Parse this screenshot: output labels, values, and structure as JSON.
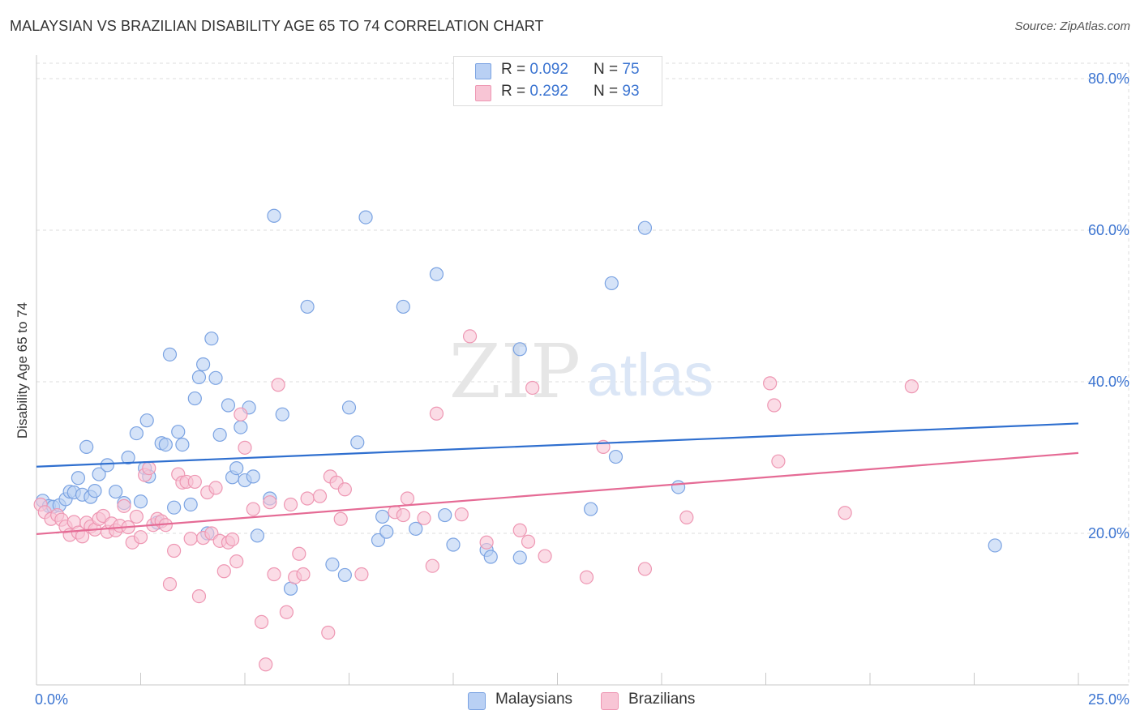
{
  "title": "MALAYSIAN VS BRAZILIAN DISABILITY AGE 65 TO 74 CORRELATION CHART",
  "source": "Source: ZipAtlas.com",
  "watermark": {
    "zip": "ZIP",
    "atlas": "atlas"
  },
  "colors": {
    "malaysians_fill": "#b9d0f4",
    "malaysians_stroke": "#7ba3e2",
    "malaysians_line": "#2f6fcf",
    "brazilians_fill": "#f8c5d5",
    "brazilians_stroke": "#ee97b3",
    "brazilians_line": "#e56b95",
    "tick_label": "#3b74d1",
    "grid": "#dddddd"
  },
  "legend": {
    "rows": [
      {
        "r_label": "R =",
        "r_value": "0.092",
        "n_label": "N =",
        "n_value": "75"
      },
      {
        "r_label": "R =",
        "r_value": "0.292",
        "n_label": "N =",
        "n_value": "93"
      }
    ]
  },
  "bottom_legend": {
    "malaysians": "Malaysians",
    "brazilians": "Brazilians"
  },
  "chart_data": {
    "type": "scatter",
    "title": "MALAYSIAN VS BRAZILIAN DISABILITY AGE 65 TO 74 CORRELATION CHART",
    "xlabel": "",
    "ylabel": "Disability Age 65 to 74",
    "xlim": [
      0,
      25
    ],
    "ylim": [
      0,
      80
    ],
    "x_tick_labels": [
      {
        "value": 0,
        "label": "0.0%"
      },
      {
        "value": 25,
        "label": "25.0%"
      }
    ],
    "y_tick_labels": [
      {
        "value": 20,
        "label": "20.0%"
      },
      {
        "value": 40,
        "label": "40.0%"
      },
      {
        "value": 60,
        "label": "60.0%"
      },
      {
        "value": 80,
        "label": "80.0%"
      }
    ],
    "grid": true,
    "legend_position": "top-center",
    "series": [
      {
        "name": "Malaysians",
        "R": 0.092,
        "N": 75,
        "trend": {
          "x": [
            0,
            25
          ],
          "y": [
            28.8,
            34.5
          ]
        },
        "points": [
          [
            0.15,
            24.3
          ],
          [
            0.3,
            23.6
          ],
          [
            0.4,
            23.5
          ],
          [
            0.55,
            23.7
          ],
          [
            0.7,
            24.5
          ],
          [
            0.8,
            25.5
          ],
          [
            0.9,
            25.4
          ],
          [
            1.0,
            27.3
          ],
          [
            1.1,
            25.1
          ],
          [
            1.2,
            31.4
          ],
          [
            1.3,
            24.8
          ],
          [
            1.4,
            25.6
          ],
          [
            1.5,
            27.8
          ],
          [
            1.7,
            29.0
          ],
          [
            1.9,
            25.5
          ],
          [
            2.1,
            24.0
          ],
          [
            2.2,
            30.0
          ],
          [
            2.4,
            33.2
          ],
          [
            2.5,
            24.2
          ],
          [
            2.6,
            28.6
          ],
          [
            2.65,
            34.9
          ],
          [
            2.7,
            27.5
          ],
          [
            2.9,
            21.4
          ],
          [
            3.0,
            31.9
          ],
          [
            3.1,
            31.7
          ],
          [
            3.2,
            43.6
          ],
          [
            3.3,
            23.4
          ],
          [
            3.4,
            33.4
          ],
          [
            3.5,
            31.7
          ],
          [
            3.7,
            23.8
          ],
          [
            3.8,
            37.8
          ],
          [
            3.9,
            40.6
          ],
          [
            4.0,
            42.3
          ],
          [
            4.1,
            20.0
          ],
          [
            4.2,
            45.7
          ],
          [
            4.3,
            40.5
          ],
          [
            4.4,
            33.0
          ],
          [
            4.6,
            36.9
          ],
          [
            4.7,
            27.4
          ],
          [
            4.8,
            28.6
          ],
          [
            4.9,
            34.0
          ],
          [
            5.0,
            27.0
          ],
          [
            5.1,
            36.6
          ],
          [
            5.2,
            27.5
          ],
          [
            5.3,
            19.7
          ],
          [
            5.6,
            24.6
          ],
          [
            5.7,
            61.9
          ],
          [
            5.9,
            35.7
          ],
          [
            6.1,
            12.7
          ],
          [
            6.5,
            49.9
          ],
          [
            7.1,
            15.9
          ],
          [
            7.4,
            14.5
          ],
          [
            7.5,
            36.6
          ],
          [
            7.7,
            32.0
          ],
          [
            7.9,
            61.7
          ],
          [
            8.2,
            19.1
          ],
          [
            8.3,
            22.2
          ],
          [
            8.4,
            20.2
          ],
          [
            8.8,
            49.9
          ],
          [
            9.1,
            20.6
          ],
          [
            9.6,
            54.2
          ],
          [
            9.8,
            22.4
          ],
          [
            10.0,
            18.5
          ],
          [
            10.8,
            17.8
          ],
          [
            10.9,
            16.9
          ],
          [
            11.6,
            16.8
          ],
          [
            11.6,
            44.3
          ],
          [
            13.3,
            23.2
          ],
          [
            13.8,
            53.0
          ],
          [
            13.9,
            30.1
          ],
          [
            14.6,
            60.3
          ],
          [
            15.4,
            26.1
          ],
          [
            23.0,
            18.4
          ]
        ]
      },
      {
        "name": "Brazilians",
        "R": 0.292,
        "N": 93,
        "trend": {
          "x": [
            0,
            25
          ],
          "y": [
            19.9,
            30.6
          ]
        },
        "points": [
          [
            0.1,
            23.8
          ],
          [
            0.2,
            22.8
          ],
          [
            0.35,
            21.9
          ],
          [
            0.5,
            22.4
          ],
          [
            0.6,
            21.8
          ],
          [
            0.7,
            20.9
          ],
          [
            0.8,
            19.8
          ],
          [
            0.9,
            21.5
          ],
          [
            1.0,
            20.1
          ],
          [
            1.1,
            19.6
          ],
          [
            1.2,
            21.4
          ],
          [
            1.3,
            20.9
          ],
          [
            1.4,
            20.5
          ],
          [
            1.5,
            21.9
          ],
          [
            1.6,
            22.3
          ],
          [
            1.7,
            20.2
          ],
          [
            1.8,
            21.3
          ],
          [
            1.9,
            20.4
          ],
          [
            2.0,
            21.0
          ],
          [
            2.1,
            23.6
          ],
          [
            2.2,
            20.8
          ],
          [
            2.3,
            18.8
          ],
          [
            2.4,
            22.2
          ],
          [
            2.5,
            19.5
          ],
          [
            2.6,
            27.7
          ],
          [
            2.7,
            28.6
          ],
          [
            2.8,
            21.1
          ],
          [
            2.9,
            21.9
          ],
          [
            3.0,
            21.6
          ],
          [
            3.1,
            21.1
          ],
          [
            3.2,
            13.3
          ],
          [
            3.3,
            17.7
          ],
          [
            3.4,
            27.8
          ],
          [
            3.5,
            26.7
          ],
          [
            3.6,
            26.8
          ],
          [
            3.7,
            19.3
          ],
          [
            3.8,
            26.8
          ],
          [
            3.9,
            11.7
          ],
          [
            4.0,
            19.4
          ],
          [
            4.1,
            25.4
          ],
          [
            4.2,
            20.0
          ],
          [
            4.3,
            26.0
          ],
          [
            4.4,
            19.0
          ],
          [
            4.5,
            15.0
          ],
          [
            4.6,
            18.8
          ],
          [
            4.7,
            19.2
          ],
          [
            4.8,
            16.3
          ],
          [
            4.9,
            35.7
          ],
          [
            5.0,
            31.3
          ],
          [
            5.2,
            23.2
          ],
          [
            5.4,
            8.3
          ],
          [
            5.5,
            2.7
          ],
          [
            5.6,
            24.1
          ],
          [
            5.7,
            14.6
          ],
          [
            5.8,
            39.6
          ],
          [
            6.0,
            9.6
          ],
          [
            6.1,
            23.8
          ],
          [
            6.2,
            14.2
          ],
          [
            6.3,
            17.3
          ],
          [
            6.4,
            14.6
          ],
          [
            6.5,
            24.6
          ],
          [
            6.8,
            24.9
          ],
          [
            7.0,
            6.9
          ],
          [
            7.05,
            27.5
          ],
          [
            7.2,
            26.7
          ],
          [
            7.3,
            21.9
          ],
          [
            7.4,
            25.8
          ],
          [
            7.8,
            14.6
          ],
          [
            8.6,
            22.8
          ],
          [
            8.8,
            22.4
          ],
          [
            8.9,
            24.6
          ],
          [
            9.3,
            22.0
          ],
          [
            9.5,
            15.7
          ],
          [
            9.6,
            35.8
          ],
          [
            10.2,
            22.5
          ],
          [
            10.4,
            46.0
          ],
          [
            10.8,
            18.8
          ],
          [
            11.6,
            20.4
          ],
          [
            11.8,
            18.9
          ],
          [
            11.9,
            39.2
          ],
          [
            12.2,
            17.0
          ],
          [
            13.2,
            14.2
          ],
          [
            13.6,
            31.4
          ],
          [
            14.6,
            15.3
          ],
          [
            15.6,
            22.1
          ],
          [
            17.6,
            39.8
          ],
          [
            17.7,
            36.9
          ],
          [
            17.8,
            29.5
          ],
          [
            19.4,
            22.7
          ],
          [
            21.0,
            39.4
          ]
        ]
      }
    ]
  }
}
